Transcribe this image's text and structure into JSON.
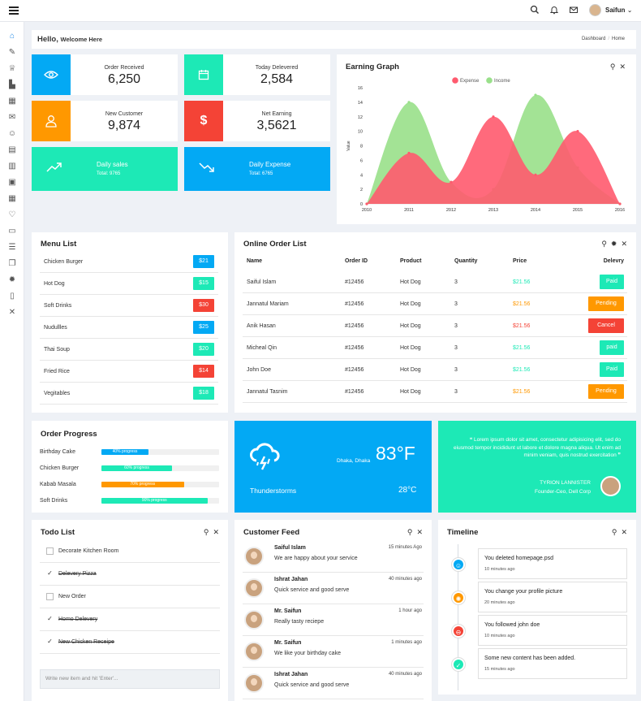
{
  "user": {
    "name": "Saifun"
  },
  "hello": {
    "greeting": "Hello,",
    "sub": "Welcome Here",
    "crumb1": "Dashboard",
    "crumb_sep": "/",
    "crumb2": "Home"
  },
  "stats": [
    {
      "label": "Order Received",
      "value": "6,250",
      "color": "#03a9f4",
      "icon": "eye-icon"
    },
    {
      "label": "Today Delevered",
      "value": "2,584",
      "color": "#1de9b6",
      "icon": "calendar-icon"
    },
    {
      "label": "New Customer",
      "value": "9,874",
      "color": "#ff9800",
      "icon": "user-icon"
    },
    {
      "label": "Net Earning",
      "value": "3,5621",
      "color": "#f44336",
      "icon": "dollar-icon"
    }
  ],
  "daily": [
    {
      "title": "Daily sales",
      "total": "Total: 9765",
      "color": "#1de9b6",
      "icon": "trend-up-icon"
    },
    {
      "title": "Daily Expense",
      "total": "Total: 6765",
      "color": "#03a9f4",
      "icon": "trend-down-icon"
    }
  ],
  "earning": {
    "title": "Earning Graph",
    "chart_data": {
      "type": "area",
      "x": [
        "2010",
        "2011",
        "2012",
        "2013",
        "2014",
        "2015",
        "2016"
      ],
      "ylabel": "Value",
      "ylim": [
        0,
        16
      ],
      "yticks": [
        "0",
        "2",
        "4",
        "6",
        "8",
        "10",
        "12",
        "14",
        "16"
      ],
      "legend": "top",
      "series": [
        {
          "name": "Expense",
          "color": "#ff5a6e",
          "values": [
            0,
            7,
            3,
            12,
            4,
            10,
            0
          ]
        },
        {
          "name": "Income",
          "color": "#99e08a",
          "values": [
            0,
            14,
            3,
            2,
            15,
            5,
            0
          ]
        }
      ]
    }
  },
  "menu": {
    "title": "Menu List",
    "items": [
      {
        "name": "Chicken Burger",
        "price": "$21",
        "color": "#03a9f4"
      },
      {
        "name": "Hot Dog",
        "price": "$15",
        "color": "#1de9b6"
      },
      {
        "name": "Soft Drinks",
        "price": "$30",
        "color": "#f44336"
      },
      {
        "name": "Nudullles",
        "price": "$25",
        "color": "#03a9f4"
      },
      {
        "name": "Thai Soup",
        "price": "$20",
        "color": "#1de9b6"
      },
      {
        "name": "Fried Rice",
        "price": "$14",
        "color": "#f44336"
      },
      {
        "name": "Vegitables",
        "price": "$18",
        "color": "#1de9b6"
      }
    ]
  },
  "orders": {
    "title": "Online Order List",
    "headers": [
      "Name",
      "Order ID",
      "Product",
      "Quantity",
      "Price",
      "Delevry"
    ],
    "rows": [
      {
        "name": "Saiful Islam",
        "id": "#12456",
        "product": "Hot Dog",
        "qty": "3",
        "price": "$21.56",
        "price_color": "#1de9b6",
        "status": "Paid",
        "color": "#1de9b6"
      },
      {
        "name": "Jannatul Mariam",
        "id": "#12456",
        "product": "Hot Dog",
        "qty": "3",
        "price": "$21.56",
        "price_color": "#ff9800",
        "status": "Pending",
        "color": "#ff9800"
      },
      {
        "name": "Anik Hasan",
        "id": "#12456",
        "product": "Hot Dog",
        "qty": "3",
        "price": "$21.56",
        "price_color": "#f44336",
        "status": "Cancel",
        "color": "#f44336"
      },
      {
        "name": "Micheal Qin",
        "id": "#12456",
        "product": "Hot Dog",
        "qty": "3",
        "price": "$21.56",
        "price_color": "#1de9b6",
        "status": "paid",
        "color": "#1de9b6"
      },
      {
        "name": "John Doe",
        "id": "#12456",
        "product": "Hot Dog",
        "qty": "3",
        "price": "$21.56",
        "price_color": "#1de9b6",
        "status": "Paid",
        "color": "#1de9b6"
      },
      {
        "name": "Jannatul Tasnim",
        "id": "#12456",
        "product": "Hot Dog",
        "qty": "3",
        "price": "$21.56",
        "price_color": "#ff9800",
        "status": "Pending",
        "color": "#ff9800"
      }
    ]
  },
  "progress": {
    "title": "Order Progress",
    "items": [
      {
        "name": "Birthday Cake",
        "label": "40% progress",
        "pct": 40,
        "color": "#03a9f4"
      },
      {
        "name": "Chicken Burger",
        "label": "60% progress",
        "pct": 60,
        "color": "#1de9b6"
      },
      {
        "name": "Kabab Masala",
        "label": "70% progress",
        "pct": 70,
        "color": "#ff9800"
      },
      {
        "name": "Soft Drinks",
        "label": "90% progress",
        "pct": 90,
        "color": "#1de9b6"
      }
    ]
  },
  "weather": {
    "location": "Dhaka, Dhaka",
    "temp": "83°F",
    "condition": "Thunderstorms",
    "temp_c": "28°C"
  },
  "quote": {
    "text": "❝ Lorem ipsum dolor sit amet, consectetur adipisicing elit, sed do eiusmod tempor incididunt ut labore et dolore magna aliqua. Ut enim ad minim veniam, quis nostrud exercitation ❞",
    "author": "TYRION LANNISTER",
    "role": "Founder-Ceo, Dell Corp"
  },
  "todo": {
    "title": "Todo List",
    "items": [
      {
        "text": "Decorate Kitchen Room",
        "done": false
      },
      {
        "text": "Delevery Pizza",
        "done": true
      },
      {
        "text": "New Order",
        "done": false
      },
      {
        "text": "Homo Delevery",
        "done": true
      },
      {
        "text": "New Chicken Receipe",
        "done": true
      }
    ],
    "placeholder": "Write new item and hit 'Enter'..."
  },
  "feed": {
    "title": "Customer Feed",
    "items": [
      {
        "name": "Saiful Islam",
        "msg": "We are happy about your service",
        "time": "15 minutes Ago"
      },
      {
        "name": "Ishrat Jahan",
        "msg": "Quick service and good serve",
        "time": "40 minutes ago"
      },
      {
        "name": "Mr. Saifun",
        "msg": "Really tasty reciepe",
        "time": "1 hour ago"
      },
      {
        "name": "Mr. Saifun",
        "msg": "We like your birthday cake",
        "time": "1 minutes ago"
      },
      {
        "name": "Ishrat Jahan",
        "msg": "Quick service and good serve",
        "time": "40 minutes ago"
      }
    ]
  },
  "timeline": {
    "title": "Timeline",
    "items": [
      {
        "text": "You deleted homepage.psd",
        "time": "10 minutes ago",
        "color": "#03a9f4",
        "icon": "smile-icon",
        "glyph": "☺"
      },
      {
        "text": "You change your profile picture",
        "time": "20 minutes ago",
        "color": "#ff9800",
        "icon": "gear-icon",
        "glyph": "✺"
      },
      {
        "text": "You followed john doe",
        "time": "10 minutes ago",
        "color": "#f44336",
        "icon": "stop-icon",
        "glyph": "⊖"
      },
      {
        "text": "Some new content has been added.",
        "time": "15 minutes ago",
        "color": "#1de9b6",
        "icon": "check-icon",
        "glyph": "✓"
      }
    ]
  }
}
